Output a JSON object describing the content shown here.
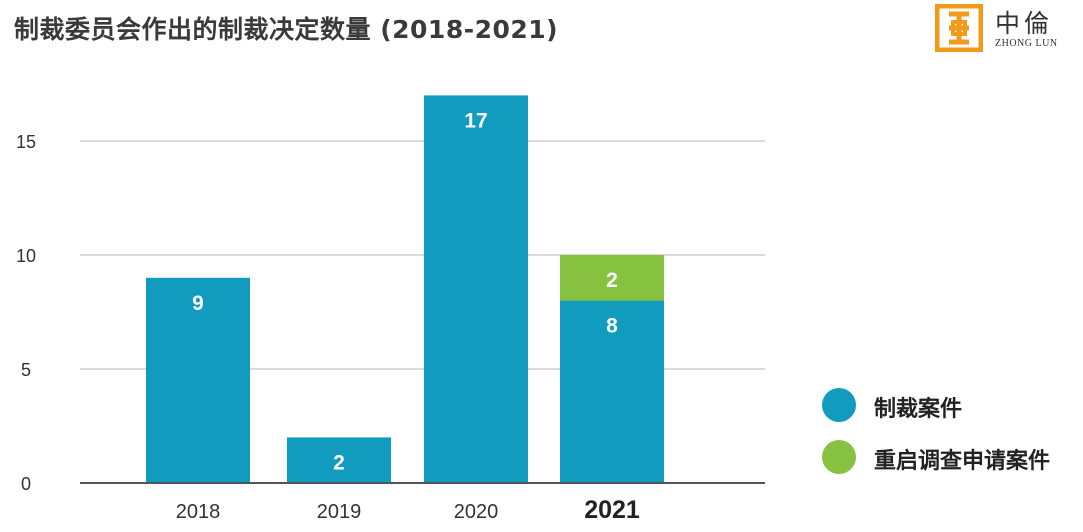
{
  "title": "制裁委员会作出的制裁决定数量 (2018-2021)",
  "logo": {
    "chinese": "中倫",
    "english": "ZHONG LUN"
  },
  "colors": {
    "primary": "#119bbf",
    "secondary": "#86c23f",
    "axis": "#555555",
    "grid": "#cfcfcf",
    "text": "#333333"
  },
  "chart_data": {
    "type": "bar",
    "stacked": true,
    "categories": [
      "2018",
      "2019",
      "2020",
      "2021"
    ],
    "highlight_category": "2021",
    "series": [
      {
        "name": "制裁案件",
        "color": "#119bbf",
        "values": [
          9,
          2,
          17,
          8
        ]
      },
      {
        "name": "重启调查申请案件",
        "color": "#86c23f",
        "values": [
          0,
          0,
          0,
          2
        ]
      }
    ],
    "data_labels": [
      [
        "9",
        "2",
        "17",
        "8"
      ],
      [
        "",
        "",
        "",
        "2"
      ]
    ],
    "ylim": [
      0,
      17
    ],
    "yticks": [
      0,
      5,
      10,
      15
    ],
    "grid": true,
    "legend_position": "right"
  }
}
